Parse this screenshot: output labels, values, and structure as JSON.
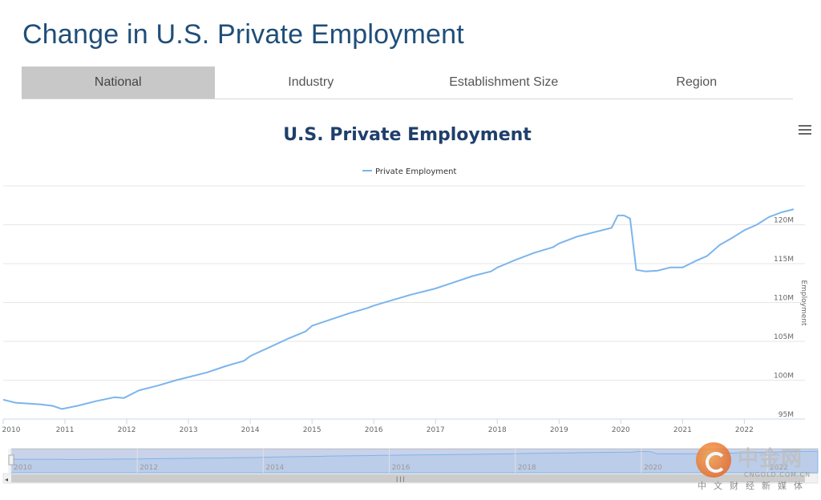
{
  "page": {
    "title": "Change in U.S. Private Employment"
  },
  "tabs": [
    {
      "label": "National",
      "active": true
    },
    {
      "label": "Industry",
      "active": false
    },
    {
      "label": "Establishment Size",
      "active": false
    },
    {
      "label": "Region",
      "active": false
    }
  ],
  "menu_icon": "hamburger-menu-icon",
  "chart_data": {
    "type": "line",
    "title": "U.S. Private Employment",
    "ylabel": "Employment",
    "xlabel": "",
    "ylim": [
      95,
      125
    ],
    "yticks": [
      95,
      100,
      105,
      110,
      115,
      120
    ],
    "ytick_labels": [
      "95M",
      "100M",
      "105M",
      "110M",
      "115M",
      "120M"
    ],
    "xlim": [
      2010.0,
      2022.8
    ],
    "xticks": [
      2010,
      2011,
      2012,
      2013,
      2014,
      2015,
      2016,
      2017,
      2018,
      2019,
      2020,
      2021,
      2022
    ],
    "xtick_labels": [
      "2010",
      "2011",
      "2012",
      "2013",
      "2014",
      "2015",
      "2016",
      "2017",
      "2018",
      "2019",
      "2020",
      "2021",
      "2022"
    ],
    "legend": {
      "position": "top-center"
    },
    "grid": true,
    "series": [
      {
        "name": "Private Employment",
        "color": "#7cb5ec",
        "x": [
          2010.0,
          2010.2,
          2010.4,
          2010.6,
          2010.8,
          2010.95,
          2011.2,
          2011.5,
          2011.8,
          2011.95,
          2012.2,
          2012.5,
          2012.8,
          2013.0,
          2013.3,
          2013.6,
          2013.9,
          2014.0,
          2014.3,
          2014.6,
          2014.9,
          2015.0,
          2015.3,
          2015.6,
          2015.9,
          2016.0,
          2016.3,
          2016.6,
          2016.9,
          2017.0,
          2017.3,
          2017.6,
          2017.9,
          2018.0,
          2018.3,
          2018.6,
          2018.9,
          2019.0,
          2019.3,
          2019.6,
          2019.85,
          2019.95,
          2020.05,
          2020.15,
          2020.25,
          2020.4,
          2020.6,
          2020.8,
          2021.0,
          2021.2,
          2021.4,
          2021.6,
          2021.8,
          2022.0,
          2022.2,
          2022.4,
          2022.6,
          2022.8
        ],
        "values": [
          97.5,
          97.1,
          97.0,
          96.9,
          96.7,
          96.3,
          96.7,
          97.3,
          97.8,
          97.7,
          98.7,
          99.3,
          100.0,
          100.4,
          101.0,
          101.8,
          102.5,
          103.1,
          104.2,
          105.3,
          106.3,
          107.0,
          107.8,
          108.6,
          109.3,
          109.6,
          110.3,
          111.0,
          111.6,
          111.8,
          112.6,
          113.4,
          114.0,
          114.5,
          115.5,
          116.4,
          117.1,
          117.6,
          118.5,
          119.1,
          119.6,
          121.2,
          121.2,
          120.8,
          114.2,
          114.0,
          114.1,
          114.5,
          114.5,
          115.3,
          116.0,
          117.4,
          118.3,
          119.3,
          120.0,
          121.0,
          121.6,
          122.0
        ]
      }
    ]
  },
  "navigator": {
    "year_labels": [
      "2010",
      "2012",
      "2014",
      "2016",
      "2018",
      "2020",
      "2022"
    ],
    "scroll_left_icon": "arrow-left-icon",
    "scroll_right_icon": "arrow-right-icon",
    "grip_icon": "grip-lines-icon"
  },
  "watermark": {
    "brand": "中金网",
    "domain": "CNGOLD.COM.CN",
    "tagline": "中文财经新媒体",
    "icon": "cngold-logo-icon"
  }
}
